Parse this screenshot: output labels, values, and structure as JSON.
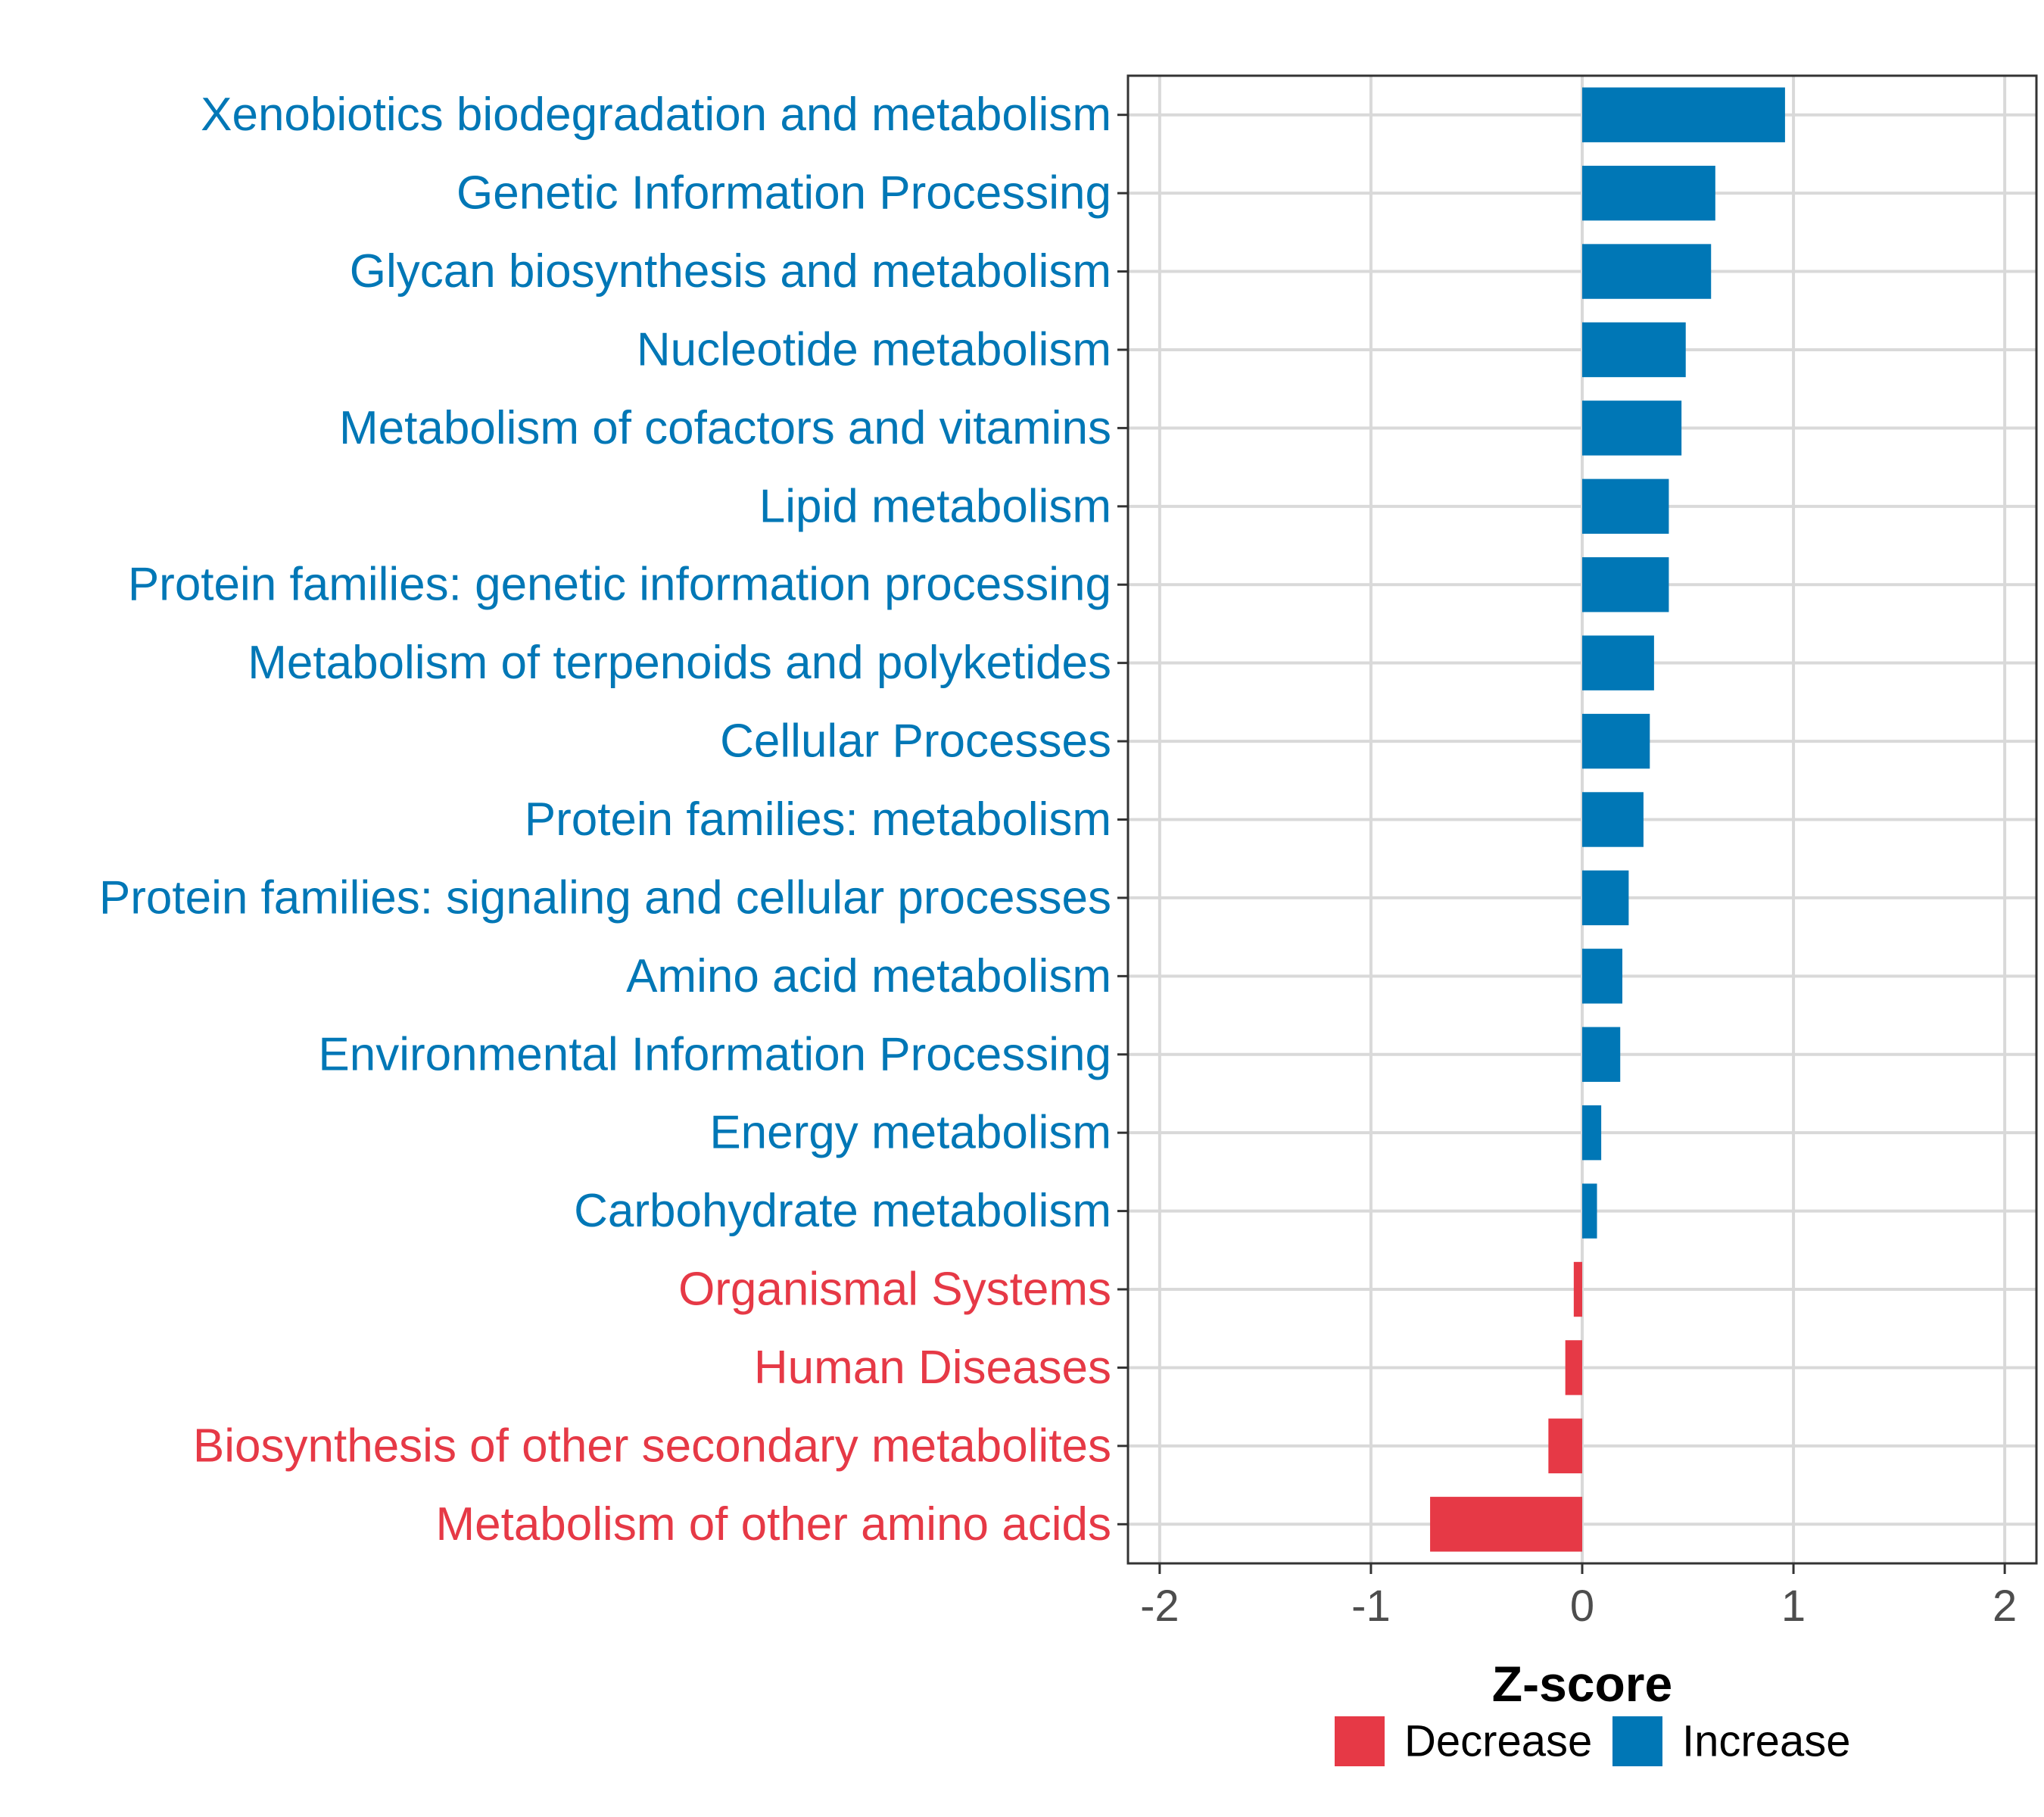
{
  "chart_data": {
    "type": "bar",
    "orientation": "horizontal",
    "title": "",
    "xlabel": "Z-score",
    "ylabel": "",
    "xlim": [
      -2.15,
      2.15
    ],
    "xticks": [
      -2,
      -1,
      0,
      1,
      2
    ],
    "xtick_labels": [
      "-2",
      "-1",
      "0",
      "1",
      "2"
    ],
    "grid": true,
    "legend_position": "bottom",
    "colors": {
      "Decrease": "#E63946",
      "Increase": "#0077B6"
    },
    "legend": [
      {
        "label": "Decrease",
        "color": "#E63946"
      },
      {
        "label": "Increase",
        "color": "#0077B6"
      }
    ],
    "bars": [
      {
        "category": "Xenobiotics biodegradation and metabolism",
        "value": 0.96,
        "group": "Increase"
      },
      {
        "category": "Genetic Information Processing",
        "value": 0.63,
        "group": "Increase"
      },
      {
        "category": "Glycan biosynthesis and metabolism",
        "value": 0.61,
        "group": "Increase"
      },
      {
        "category": "Nucleotide metabolism",
        "value": 0.49,
        "group": "Increase"
      },
      {
        "category": "Metabolism of cofactors and vitamins",
        "value": 0.47,
        "group": "Increase"
      },
      {
        "category": "Lipid metabolism",
        "value": 0.41,
        "group": "Increase"
      },
      {
        "category": "Protein families: genetic information processing",
        "value": 0.41,
        "group": "Increase"
      },
      {
        "category": "Metabolism of terpenoids and polyketides",
        "value": 0.34,
        "group": "Increase"
      },
      {
        "category": "Cellular Processes",
        "value": 0.32,
        "group": "Increase"
      },
      {
        "category": "Protein families: metabolism",
        "value": 0.29,
        "group": "Increase"
      },
      {
        "category": "Protein families: signaling and cellular processes",
        "value": 0.22,
        "group": "Increase"
      },
      {
        "category": "Amino acid metabolism",
        "value": 0.19,
        "group": "Increase"
      },
      {
        "category": "Environmental Information Processing",
        "value": 0.18,
        "group": "Increase"
      },
      {
        "category": "Energy metabolism",
        "value": 0.09,
        "group": "Increase"
      },
      {
        "category": "Carbohydrate metabolism",
        "value": 0.07,
        "group": "Increase"
      },
      {
        "category": "Organismal Systems",
        "value": -0.04,
        "group": "Decrease"
      },
      {
        "category": "Human Diseases",
        "value": -0.08,
        "group": "Decrease"
      },
      {
        "category": "Biosynthesis of other secondary metabolites",
        "value": -0.16,
        "group": "Decrease"
      },
      {
        "category": "Metabolism of other amino acids",
        "value": -0.72,
        "group": "Decrease"
      }
    ]
  }
}
